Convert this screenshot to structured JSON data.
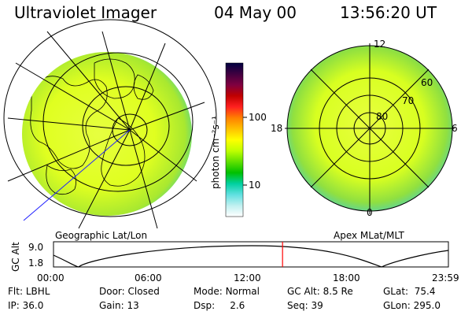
{
  "header": {
    "title": "Ultraviolet Imager",
    "date": "04 May 00",
    "time": "13:56:20 UT"
  },
  "left_panel": {
    "caption": "Geographic Lat/Lon"
  },
  "right_panel": {
    "caption": "Apex MLat/MLT",
    "lat_labels": [
      "80",
      "70",
      "60"
    ],
    "mlt_labels": {
      "top": "12",
      "left": "18",
      "right": "6",
      "bottom": "0"
    }
  },
  "colorbar": {
    "unit_label": "photon cm⁻²s⁻¹",
    "ticks": [
      "100",
      "10"
    ],
    "colors": [
      "#000040",
      "#400040",
      "#800040",
      "#c00000",
      "#ff2020",
      "#ff8000",
      "#ffc000",
      "#ffff00",
      "#c0ff00",
      "#60e000",
      "#00c000",
      "#00d0a0",
      "#60e0e0",
      "#c0f0f0",
      "#ffffff"
    ]
  },
  "altitude_plot": {
    "ylabel": "GC Alt",
    "yticks": [
      "9.0",
      "1.8"
    ],
    "xticks": [
      "00:00",
      "06:00",
      "12:00",
      "18:00",
      "23:59"
    ],
    "current_time_fraction": 0.58
  },
  "info": {
    "row1": [
      {
        "label": "Flt:",
        "value": "LBHL"
      },
      {
        "label": "Door:",
        "value": "Closed"
      },
      {
        "label": "Mode:",
        "value": "Normal"
      },
      {
        "label": "GC Alt:",
        "value": "8.5 Re"
      },
      {
        "label": "GLat:",
        "value": "75.4"
      }
    ],
    "row2": [
      {
        "label": "IP:",
        "value": "36.0"
      },
      {
        "label": "Gain:",
        "value": "13"
      },
      {
        "label": "Dsp:",
        "value": "2.6"
      },
      {
        "label": "Seq:",
        "value": "39"
      },
      {
        "label": "GLon:",
        "value": "295.0"
      }
    ]
  }
}
